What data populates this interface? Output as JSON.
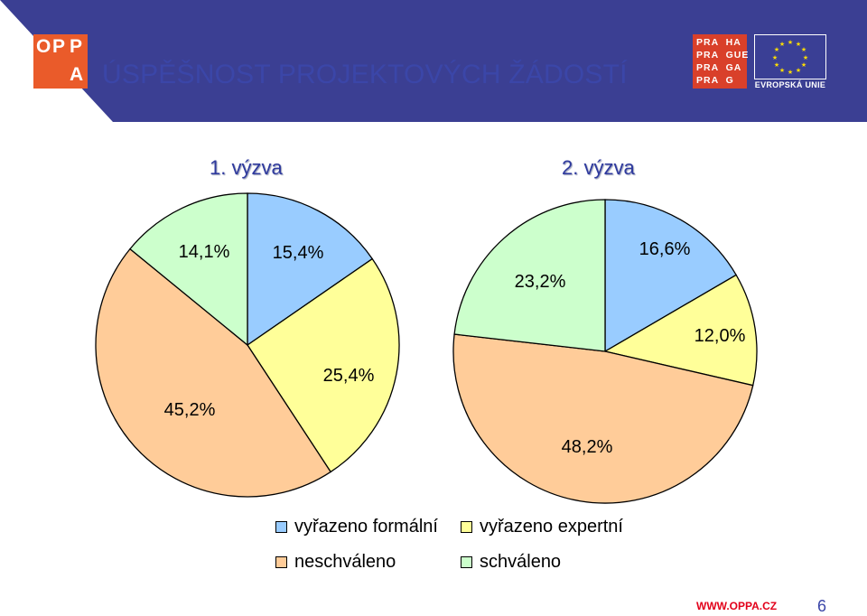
{
  "header": {
    "title": "ÚSPĚŠNOST PROJEKTOVÝCH ŽÁDOSTÍ",
    "opp_logo": [
      "O",
      "P",
      "P",
      "A"
    ],
    "praha_logo_rows": [
      "PRA  HA",
      "PRA  GUE",
      "PRA  GA",
      "PRA  G"
    ],
    "eu_logo_text": "EVROPSKÁ UNIE",
    "colors": {
      "band": "#3b3f93",
      "title": "#3b46a8",
      "opp": "#ea5b2a",
      "praha": "#d9402a"
    }
  },
  "chart_data": [
    {
      "type": "pie",
      "title": "1. výzva",
      "slices": [
        {
          "category": "vyřazeno formální",
          "value": 15.4,
          "label": "15,4%",
          "color": "#99ccff"
        },
        {
          "category": "vyřazeno expertní",
          "value": 25.4,
          "label": "25,4%",
          "color": "#ffff99"
        },
        {
          "category": "neschváleno",
          "value": 45.2,
          "label": "45,2%",
          "color": "#ffcc99"
        },
        {
          "category": "schváleno",
          "value": 14.1,
          "label": "14,1%",
          "color": "#ccffcc",
          "label_color": "#e2001a"
        }
      ]
    },
    {
      "type": "pie",
      "title": "2. výzva",
      "slices": [
        {
          "category": "vyřazeno formální",
          "value": 16.6,
          "label": "16,6%",
          "color": "#99ccff"
        },
        {
          "category": "vyřazeno expertní",
          "value": 12.0,
          "label": "12,0%",
          "color": "#ffff99"
        },
        {
          "category": "neschváleno",
          "value": 48.2,
          "label": "48,2%",
          "color": "#ffcc99"
        },
        {
          "category": "schváleno",
          "value": 23.2,
          "label": "23,2%",
          "color": "#ccffcc",
          "label_color": "#e2001a"
        }
      ]
    }
  ],
  "legend": [
    {
      "label": "vyřazeno formální",
      "color": "#99ccff"
    },
    {
      "label": "vyřazeno expertní",
      "color": "#ffff99"
    },
    {
      "label": "neschváleno",
      "color": "#ffcc99"
    },
    {
      "label": "schváleno",
      "color": "#ccffcc"
    }
  ],
  "footer": {
    "url": "WWW.OPPA.CZ",
    "page_number": "6"
  }
}
